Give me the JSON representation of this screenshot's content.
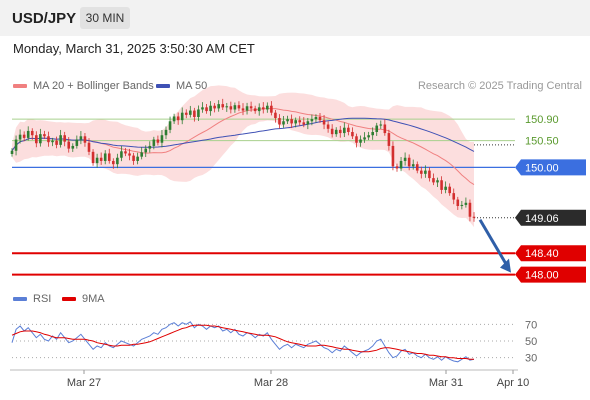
{
  "header": {
    "symbol": "USD/JPY",
    "timeframe": "30 MIN",
    "datetime": "Monday, March 31, 2025 3:50:30 AM CET"
  },
  "legend": {
    "ma20_label": "MA 20 + Bollinger Bands",
    "ma50_label": "MA 50",
    "credit": "Research © 2025 Trading Central",
    "rsi_label": "RSI",
    "rsi_ma_label": "9MA"
  },
  "colors": {
    "bull": "#2e7d32",
    "bear": "#d32f2f",
    "ma20": "#f08080",
    "ma50": "#3f51b5",
    "band": "#fbd3d3",
    "resistance": "#a8d08d",
    "pivot": "#3b6fe0",
    "support": "#e00000",
    "current": "#2b2b2b",
    "arrow": "#2f5fa8",
    "rsi": "#5b7fd6",
    "rsi_ma": "#e00000"
  },
  "levels": [
    {
      "label": "150.90",
      "value": 150.9,
      "kind": "resistance"
    },
    {
      "label": "150.50",
      "value": 150.5,
      "kind": "resistance"
    },
    {
      "label": "150.00",
      "value": 150.0,
      "kind": "pivot"
    },
    {
      "label": "149.06",
      "value": 149.06,
      "kind": "current"
    },
    {
      "label": "148.40",
      "value": 148.4,
      "kind": "support"
    },
    {
      "label": "148.00",
      "value": 148.0,
      "kind": "support"
    }
  ],
  "x_labels": [
    "Mar 27",
    "Mar 28",
    "Mar 31",
    "Apr 10"
  ],
  "rsi_levels": [
    "70",
    "50",
    "30"
  ],
  "chart_data": {
    "type": "candlestick",
    "price_range": [
      147.9,
      151.35
    ],
    "rsi_range": [
      20,
      80
    ],
    "close": [
      150.31,
      150.52,
      150.61,
      150.55,
      150.68,
      150.6,
      150.45,
      150.62,
      150.58,
      150.47,
      150.5,
      150.42,
      150.6,
      150.48,
      150.35,
      150.4,
      150.52,
      150.58,
      150.46,
      150.29,
      150.08,
      150.18,
      150.12,
      150.26,
      150.12,
      150.06,
      150.18,
      150.3,
      150.26,
      150.22,
      150.12,
      150.2,
      150.28,
      150.35,
      150.4,
      150.52,
      150.46,
      150.6,
      150.7,
      150.86,
      150.95,
      150.88,
      151.02,
      150.98,
      151.06,
      150.94,
      151.08,
      151.12,
      151.05,
      151.15,
      151.1,
      151.18,
      151.12,
      151.14,
      151.08,
      151.16,
      151.1,
      151.06,
      151.14,
      151.1,
      151.05,
      151.12,
      151.08,
      151.15,
      151.02,
      150.92,
      150.8,
      150.86,
      150.9,
      150.82,
      150.88,
      150.84,
      150.8,
      150.86,
      150.9,
      150.94,
      150.88,
      150.8,
      150.72,
      150.62,
      150.7,
      150.64,
      150.74,
      150.66,
      150.58,
      150.46,
      150.52,
      150.56,
      150.6,
      150.66,
      150.78,
      150.8,
      150.64,
      150.4,
      150.02,
      149.98,
      150.12,
      150.18,
      150.02,
      150.06,
      149.94,
      149.88,
      149.94,
      149.8,
      149.72,
      149.76,
      149.58,
      149.64,
      149.52,
      149.4,
      149.28,
      149.3,
      149.34,
      149.08,
      149.06
    ],
    "rsi": [
      48,
      64,
      68,
      62,
      66,
      60,
      54,
      58,
      52,
      50,
      56,
      52,
      60,
      54,
      48,
      50,
      54,
      58,
      52,
      46,
      40,
      44,
      42,
      48,
      44,
      42,
      46,
      50,
      48,
      46,
      44,
      48,
      52,
      54,
      56,
      60,
      58,
      64,
      66,
      70,
      72,
      68,
      72,
      70,
      73,
      66,
      70,
      68,
      64,
      68,
      66,
      68,
      62,
      64,
      60,
      64,
      58,
      56,
      60,
      58,
      54,
      58,
      56,
      60,
      52,
      46,
      40,
      44,
      46,
      42,
      46,
      44,
      42,
      46,
      48,
      50,
      46,
      42,
      40,
      36,
      40,
      38,
      44,
      40,
      36,
      32,
      36,
      38,
      40,
      44,
      50,
      52,
      44,
      36,
      30,
      32,
      38,
      40,
      34,
      36,
      32,
      30,
      34,
      30,
      28,
      31,
      27,
      31,
      28,
      26,
      25,
      28,
      31,
      27,
      28
    ],
    "rsi_ma": [
      57,
      59,
      61,
      62,
      62,
      62,
      61,
      60,
      58,
      57,
      55,
      54,
      54,
      54,
      53,
      52,
      52,
      52,
      52,
      51,
      50,
      48,
      47,
      46,
      45,
      44,
      44,
      45,
      45,
      45,
      46,
      46,
      47,
      48,
      49,
      51,
      53,
      55,
      57,
      59,
      61,
      63,
      65,
      66,
      68,
      69,
      69,
      69,
      69,
      68,
      68,
      67,
      66,
      65,
      64,
      63,
      62,
      61,
      60,
      59,
      58,
      57,
      57,
      57,
      56,
      55,
      53,
      51,
      49,
      48,
      47,
      46,
      45,
      44,
      44,
      44,
      45,
      45,
      44,
      43,
      42,
      41,
      40,
      40,
      39,
      38,
      37,
      37,
      37,
      38,
      39,
      41,
      42,
      42,
      41,
      40,
      39,
      38,
      37,
      36,
      35,
      35,
      34,
      33,
      33,
      32,
      31,
      31,
      30,
      30,
      29,
      29,
      29,
      28,
      28
    ],
    "projection_to": 148.0
  }
}
